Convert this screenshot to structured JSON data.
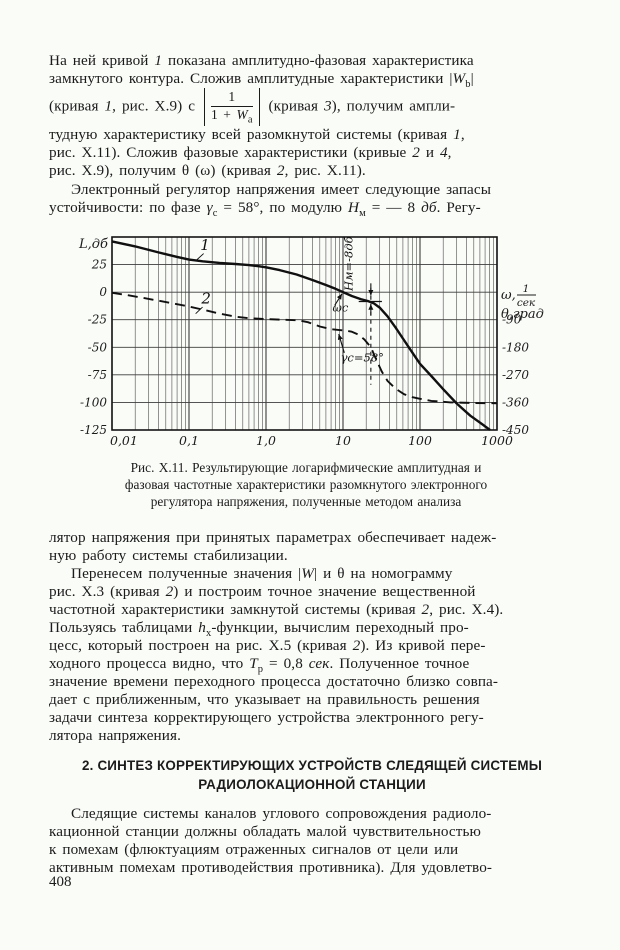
{
  "page": {
    "number": "408"
  },
  "colors": {
    "paper": "#fafcf8",
    "ink": "#1b1b1b"
  },
  "paragraphs": {
    "p1": {
      "segments": [
        {
          "t": "На ней кривой "
        },
        {
          "t": "1",
          "s": "i"
        },
        {
          "t": " показана амплитудно-фазовая характеристика\nзамкнутого контура. Сложив амплитудные характеристики |"
        },
        {
          "t": "W",
          "s": "i"
        },
        {
          "t": "b",
          "s": "sub"
        },
        {
          "t": "|\n(кривая "
        },
        {
          "t": "1",
          "s": "i"
        },
        {
          "t": ", рис. X.9) с "
        },
        {
          "s": "frac",
          "num": [
            {
              "t": "1"
            }
          ],
          "den": [
            {
              "t": "1 + "
            },
            {
              "t": "W",
              "s": "i"
            },
            {
              "t": "a",
              "s": "sub"
            }
          ]
        },
        {
          "t": " (кривая "
        },
        {
          "t": "3",
          "s": "i"
        },
        {
          "t": "), получим ампли-\nтудную характеристику всей разомкнутой системы (кривая "
        },
        {
          "t": "1",
          "s": "i"
        },
        {
          "t": ",\nрис. X.11). Сложив фазовые характеристики (кривые "
        },
        {
          "t": "2",
          "s": "i"
        },
        {
          "t": " и "
        },
        {
          "t": "4",
          "s": "i"
        },
        {
          "t": ",\nрис. X.9), получим θ (ω) (кривая "
        },
        {
          "t": "2",
          "s": "i"
        },
        {
          "t": ", рис. X.11)."
        }
      ]
    },
    "p2": {
      "segments": [
        {
          "t": "Электронный регулятор напряжения имеет следующие запасы\nустойчивости: по фазе "
        },
        {
          "t": "γ",
          "s": "i"
        },
        {
          "t": "c",
          "s": "sub"
        },
        {
          "t": " = 58°, по модулю "
        },
        {
          "t": "H",
          "s": "i"
        },
        {
          "t": "м",
          "s": "sub"
        },
        {
          "t": " = — 8 "
        },
        {
          "t": "дб",
          "s": "i"
        },
        {
          "t": ". Регу-"
        }
      ]
    },
    "p3": {
      "segments": [
        {
          "t": "лятор напряжения при принятых параметрах обеспечивает надеж-\nную работу системы стабилизации."
        }
      ]
    },
    "p4": {
      "segments": [
        {
          "t": "Перенесем полученные значения |"
        },
        {
          "t": "W",
          "s": "i"
        },
        {
          "t": "| и θ на номограмму\nрис. X.3 (кривая "
        },
        {
          "t": "2",
          "s": "i"
        },
        {
          "t": ") и построим точное значение вещественной\nчастотной характеристики замкнутой системы (кривая "
        },
        {
          "t": "2",
          "s": "i"
        },
        {
          "t": ", рис. X.4).\nПользуясь таблицами "
        },
        {
          "t": "h",
          "s": "i"
        },
        {
          "t": "x",
          "s": "sub"
        },
        {
          "t": "-функции, вычислим переходный про-\nцесс, который построен на рис. X.5 (кривая "
        },
        {
          "t": "2",
          "s": "i"
        },
        {
          "t": "). Из кривой пере-\nходного процесса видно, что "
        },
        {
          "t": "T",
          "s": "i"
        },
        {
          "t": "p",
          "s": "sub"
        },
        {
          "t": " = 0,8 "
        },
        {
          "t": "сек",
          "s": "i"
        },
        {
          "t": ". Полученное точное\nзначение времени переходного процесса достаточно близко совпа-\nдает с приближенным, что указывает на правильность решения\nзадачи синтеза корректирующего устройства электронного регу-\nлятора напряжения."
        }
      ]
    },
    "p5": {
      "segments": [
        {
          "t": "Следящие системы каналов углового сопровождения радиоло-\nкационной станции должны обладать малой чувствительностью\nк помехам (флюктуациям отраженных сигналов от цели или\nактивным помехам противодействия противника). Для удовлетво-"
        }
      ]
    }
  },
  "figure": {
    "caption": "Рис. X.11. Результирующие логарифмические амплитудная и\nфазовая частотные характеристики разомкнутого электронного\nрегулятора напряжения, полученные методом анализа"
  },
  "heading": {
    "text": "2. СИНТЕЗ КОРРЕКТИРУЮЩИХ УСТРОЙСТВ СЛЕДЯЩЕЙ СИСТЕМЫ\nРАДИОЛОКАЦИОННОЙ СТАНЦИИ"
  },
  "chart_data": {
    "type": "line",
    "x_scale": "log",
    "xlim": [
      0.01,
      1000
    ],
    "ylim_left_db": [
      -125,
      50
    ],
    "ylim_right_deg": [
      -450,
      180
    ],
    "grid": "on",
    "axis_labels": {
      "left": "L,дб",
      "right_omega": "ω,",
      "right_frac_num": "1",
      "right_frac_den": "сек",
      "right_phase": "θ,град"
    },
    "x_ticks": [
      {
        "v": 0.01,
        "label": "0,01"
      },
      {
        "v": 0.1,
        "label": "0,1"
      },
      {
        "v": 1,
        "label": "1,0"
      },
      {
        "v": 10,
        "label": "10"
      },
      {
        "v": 100,
        "label": "100"
      },
      {
        "v": 1000,
        "label": "1000"
      }
    ],
    "y_ticks_left": [
      {
        "v": 25,
        "label": "25"
      },
      {
        "v": 0,
        "label": "0"
      },
      {
        "v": -25,
        "label": "-25"
      },
      {
        "v": -50,
        "label": "-50"
      },
      {
        "v": -75,
        "label": "-75"
      },
      {
        "v": -100,
        "label": "-100"
      },
      {
        "v": -125,
        "label": "-125"
      }
    ],
    "y_ticks_right": [
      {
        "deg": -90,
        "label": "-90"
      },
      {
        "deg": -180,
        "label": "-180"
      },
      {
        "deg": -270,
        "label": "-270"
      },
      {
        "deg": -360,
        "label": "-360"
      },
      {
        "deg": -450,
        "label": "-450"
      }
    ],
    "series": [
      {
        "name": "1",
        "style": "solid",
        "axis": "left_db",
        "label_at": {
          "omega": 0.14,
          "db": 38
        },
        "leader": {
          "from": [
            0.155,
            35
          ],
          "to": [
            0.127,
            29.5
          ]
        },
        "points": [
          [
            0.01,
            46
          ],
          [
            0.02,
            41.5
          ],
          [
            0.04,
            36
          ],
          [
            0.07,
            32
          ],
          [
            0.1,
            29.5
          ],
          [
            0.15,
            28
          ],
          [
            0.25,
            26.5
          ],
          [
            0.4,
            25.5
          ],
          [
            0.6,
            24.5
          ],
          [
            0.8,
            23.5
          ],
          [
            1,
            22.5
          ],
          [
            1.5,
            20
          ],
          [
            2.5,
            16
          ],
          [
            4,
            11
          ],
          [
            6,
            6.5
          ],
          [
            8,
            3
          ],
          [
            10,
            0
          ],
          [
            13,
            -3.5
          ],
          [
            17,
            -6.3
          ],
          [
            21,
            -8
          ],
          [
            25,
            -10
          ],
          [
            30,
            -14
          ],
          [
            38,
            -22
          ],
          [
            48,
            -32
          ],
          [
            60,
            -42
          ],
          [
            80,
            -55
          ],
          [
            100,
            -65
          ],
          [
            140,
            -76
          ],
          [
            200,
            -88
          ],
          [
            300,
            -101
          ],
          [
            450,
            -112
          ],
          [
            650,
            -120
          ],
          [
            810,
            -125
          ]
        ]
      },
      {
        "name": "2",
        "style": "dashed",
        "axis": "right_deg",
        "label_at": {
          "omega": 0.145,
          "db": -10.5
        },
        "leader": {
          "from": [
            0.15,
            -13.5
          ],
          "to": [
            0.122,
            -19.5
          ]
        },
        "points": [
          [
            0.01,
            -2
          ],
          [
            0.016,
            -10
          ],
          [
            0.03,
            -22
          ],
          [
            0.06,
            -36
          ],
          [
            0.1,
            -47
          ],
          [
            0.15,
            -57
          ],
          [
            0.25,
            -70
          ],
          [
            0.4,
            -80
          ],
          [
            0.6,
            -85
          ],
          [
            1,
            -88
          ],
          [
            1.6,
            -90
          ],
          [
            2.6,
            -92
          ],
          [
            3.5,
            -98
          ],
          [
            5,
            -112
          ],
          [
            7,
            -121
          ],
          [
            9,
            -124
          ],
          [
            11,
            -126
          ],
          [
            13,
            -129
          ],
          [
            16,
            -139
          ],
          [
            19,
            -155
          ],
          [
            23,
            -180
          ],
          [
            27,
            -220
          ],
          [
            32,
            -260
          ],
          [
            38,
            -290
          ],
          [
            48,
            -315
          ],
          [
            62,
            -333
          ],
          [
            80,
            -343
          ],
          [
            100,
            -348
          ],
          [
            140,
            -355
          ],
          [
            250,
            -360
          ],
          [
            500,
            -362
          ],
          [
            1000,
            -363
          ]
        ]
      }
    ],
    "annotations": [
      {
        "text": "Hм=-8дб",
        "omega": 13.2,
        "db": 1,
        "rotate": -90
      },
      {
        "text": "ωc",
        "omega": 7.3,
        "db": -17.5
      },
      {
        "text": "γc=58°",
        "omega": 9.3,
        "db": -63
      }
    ],
    "markers": {
      "stability": {
        "phase_margin_deg": 58,
        "modulus_margin_db": -8,
        "crossover_omega": 10
      },
      "vline": {
        "omega": 23,
        "db_top": 4,
        "db_bottom": -84
      },
      "level_seg": {
        "db": -8.5,
        "omega_from": 16,
        "omega_to": 32
      },
      "gap_arrows": [
        {
          "omega": 23,
          "db_from": 8,
          "db_to": -3
        },
        {
          "omega": 23,
          "db_from": -21,
          "db_to": -11
        }
      ],
      "pointers": [
        {
          "from": [
            7.8,
            -12
          ],
          "to": [
            9.7,
            -1.5
          ]
        },
        {
          "from": [
            10.4,
            -55
          ],
          "to": [
            8.8,
            -38
          ]
        }
      ]
    }
  }
}
